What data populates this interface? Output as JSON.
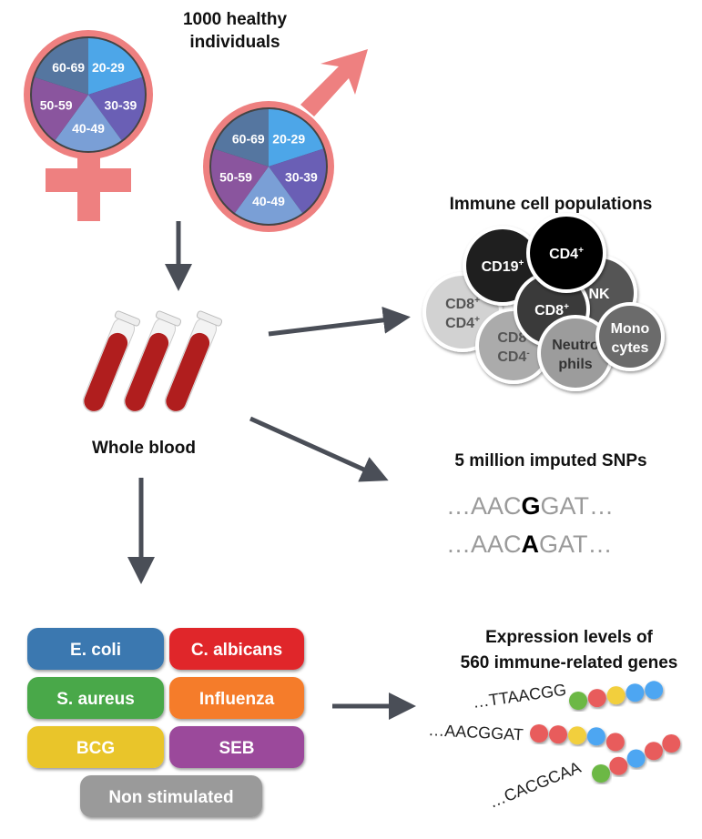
{
  "cohort": {
    "title_line1": "1000 healthy individuals",
    "title_line2": "",
    "age_groups": [
      "20-29",
      "30-39",
      "40-49",
      "50-59",
      "60-69"
    ],
    "age_colors": [
      "#4da6e8",
      "#6a5fb5",
      "#7a9fd6",
      "#8a559e",
      "#5576a0"
    ],
    "symbol_color": "#ee8080"
  },
  "blood": {
    "label": "Whole blood",
    "tube_color": "#b01e1e"
  },
  "cells": {
    "title": "Immune cell populations",
    "items": [
      {
        "label": "CD19",
        "sup": "+",
        "fill": "#1f1f1f",
        "text": "#fff"
      },
      {
        "label": "CD4",
        "sup": "+",
        "fill": "#000000",
        "text": "#fff"
      },
      {
        "label": "NK",
        "sup": "",
        "fill": "#555555",
        "text": "#fff"
      },
      {
        "label": "CD8",
        "sup": "+",
        "label2": "CD4",
        "sup2": "+",
        "fill": "#d2d2d2",
        "text": "#555"
      },
      {
        "label": "CD8",
        "sup": "+",
        "fill": "#3a3a3a",
        "text": "#fff"
      },
      {
        "label": "CD8",
        "sup": "-",
        "label2": "CD4",
        "sup2": "-",
        "fill": "#ababab",
        "text": "#555"
      },
      {
        "label": "Neutro",
        "label2": "phils",
        "fill": "#9c9c9c",
        "text": "#333"
      },
      {
        "label": "Mono",
        "label2": "cytes",
        "fill": "#6b6b6b",
        "text": "#fff"
      }
    ]
  },
  "snps": {
    "title": "5 million imputed SNPs",
    "seq1": {
      "pre": "…AAC",
      "snp": "G",
      "post": "GAT…"
    },
    "seq2": {
      "pre": "…AAC",
      "snp": "A",
      "post": "GAT…"
    }
  },
  "stimuli": [
    {
      "label": "E. coli",
      "color": "#3a78b0"
    },
    {
      "label": "C. albicans",
      "color": "#e0262b"
    },
    {
      "label": "S. aureus",
      "color": "#4aa84a"
    },
    {
      "label": "Influenza",
      "color": "#f57c2a"
    },
    {
      "label": "BCG",
      "color": "#e9c52b"
    },
    {
      "label": "SEB",
      "color": "#9b4a9b"
    },
    {
      "label": "Non stimulated",
      "color": "#9a9a9a"
    }
  ],
  "expression": {
    "title_line1": "Expression levels of",
    "title_line2": "560 immune-related genes",
    "strands": [
      {
        "seq": "…TTAACGG",
        "beads": [
          "#6cb844",
          "#e85c5c",
          "#f2cf3c",
          "#4da6f2",
          "#4da6f2"
        ]
      },
      {
        "seq": "…AACGGAT",
        "beads": [
          "#e85c5c",
          "#e85c5c",
          "#f2cf3c",
          "#4da6f2",
          "#e85c5c"
        ]
      },
      {
        "seq": "…CACGCAA",
        "beads": [
          "#6cb844",
          "#e85c5c",
          "#4da6f2",
          "#e85c5c",
          "#e85c5c"
        ]
      }
    ]
  }
}
